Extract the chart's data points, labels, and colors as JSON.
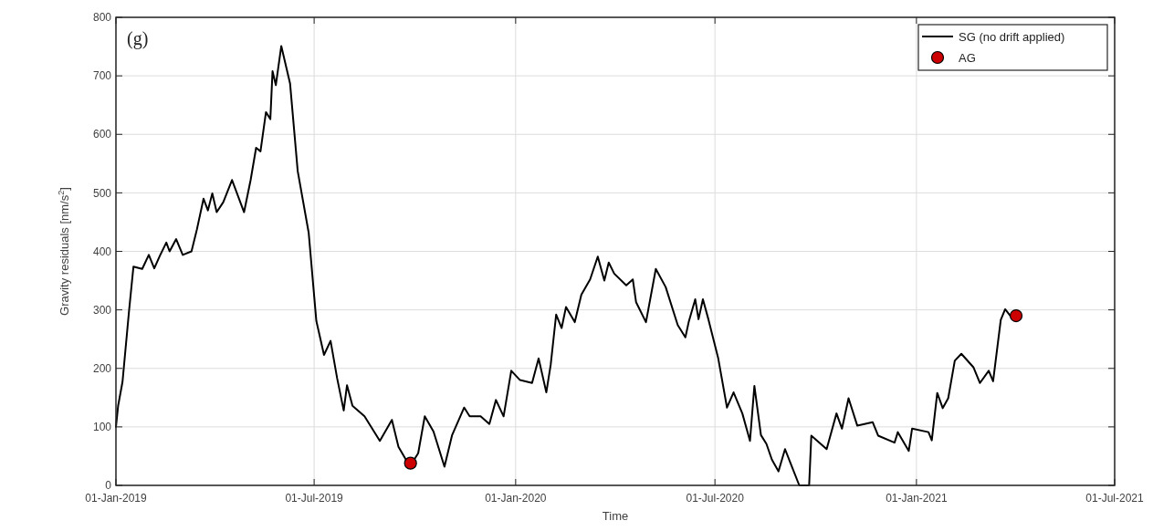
{
  "chart_data": {
    "type": "line",
    "xlabel": "Time",
    "ylabel": "Gravity residuals [nm/s$^{2}$]",
    "annotations": [
      "(g)"
    ],
    "xlim": [
      "2019-01-01",
      "2021-07-01"
    ],
    "xticks": [
      {
        "value": "2019-01-01",
        "label": "01-Jan-2019"
      },
      {
        "value": "2019-07-01",
        "label": "01-Jul-2019"
      },
      {
        "value": "2020-01-01",
        "label": "01-Jan-2020"
      },
      {
        "value": "2020-07-01",
        "label": "01-Jul-2020"
      },
      {
        "value": "2021-01-01",
        "label": "01-Jan-2021"
      },
      {
        "value": "2021-07-01",
        "label": "01-Jul-2021"
      }
    ],
    "ylim": [
      0,
      800
    ],
    "yticks": [
      0,
      100,
      200,
      300,
      400,
      500,
      600,
      700,
      800
    ],
    "grid": true,
    "legend": "top right",
    "series": [
      {
        "name": "SG (no drift applied)",
        "color": "#000000",
        "marker": "none",
        "x": [
          "2019-01-01",
          "2019-01-03",
          "2019-01-07",
          "2019-01-13",
          "2019-01-17",
          "2019-01-25",
          "2019-01-31",
          "2019-02-05",
          "2019-02-10",
          "2019-02-16",
          "2019-02-19",
          "2019-02-25",
          "2019-03-03",
          "2019-03-11",
          "2019-03-16",
          "2019-03-22",
          "2019-03-26",
          "2019-03-30",
          "2019-04-03",
          "2019-04-09",
          "2019-04-17",
          "2019-04-28",
          "2019-05-04",
          "2019-05-09",
          "2019-05-13",
          "2019-05-18",
          "2019-05-22",
          "2019-05-24",
          "2019-05-27",
          "2019-06-01",
          "2019-06-09",
          "2019-06-16",
          "2019-06-26",
          "2019-07-03",
          "2019-07-10",
          "2019-07-16",
          "2019-07-22",
          "2019-07-28",
          "2019-07-31",
          "2019-08-05",
          "2019-08-16",
          "2019-08-30",
          "2019-09-10",
          "2019-09-16",
          "2019-09-24",
          "2019-09-27",
          "2019-10-04",
          "2019-10-10",
          "2019-10-18",
          "2019-10-28",
          "2019-11-04",
          "2019-11-15",
          "2019-11-20",
          "2019-11-30",
          "2019-12-08",
          "2019-12-14",
          "2019-12-21",
          "2019-12-28",
          "2020-01-05",
          "2020-01-16",
          "2020-01-22",
          "2020-01-29",
          "2020-02-02",
          "2020-02-07",
          "2020-02-12",
          "2020-02-16",
          "2020-02-24",
          "2020-03-01",
          "2020-03-09",
          "2020-03-16",
          "2020-03-22",
          "2020-03-26",
          "2020-03-31",
          "2020-04-11",
          "2020-04-17",
          "2020-04-20",
          "2020-04-29",
          "2020-05-08",
          "2020-05-17",
          "2020-05-28",
          "2020-06-04",
          "2020-06-07",
          "2020-06-13",
          "2020-06-16",
          "2020-06-20",
          "2020-06-25",
          "2020-07-04",
          "2020-07-12",
          "2020-07-18",
          "2020-07-26",
          "2020-08-02",
          "2020-08-06",
          "2020-08-12",
          "2020-08-17",
          "2020-08-22",
          "2020-08-28",
          "2020-09-03",
          "2020-09-08",
          "2020-09-16",
          "2020-09-25",
          "2020-09-27",
          "2020-10-11",
          "2020-10-20",
          "2020-10-25",
          "2020-10-31",
          "2020-11-08",
          "2020-11-22",
          "2020-11-27",
          "2020-12-12",
          "2020-12-15",
          "2020-12-25",
          "2020-12-28",
          "2021-01-12",
          "2021-01-15",
          "2021-01-20",
          "2021-01-25",
          "2021-01-30",
          "2021-02-05",
          "2021-02-11",
          "2021-02-22",
          "2021-02-28",
          "2021-03-08",
          "2021-03-12",
          "2021-03-19",
          "2021-03-23",
          "2021-03-28"
        ],
        "values": [
          100,
          136,
          177,
          299,
          374,
          370,
          394,
          371,
          392,
          415,
          400,
          421,
          394,
          400,
          438,
          490,
          470,
          499,
          467,
          484,
          522,
          467,
          522,
          577,
          571,
          638,
          626,
          708,
          684,
          751,
          687,
          537,
          432,
          281,
          223,
          247,
          183,
          128,
          171,
          136,
          118,
          76,
          112,
          66,
          40,
          34,
          55,
          118,
          92,
          32,
          86,
          133,
          118,
          118,
          105,
          146,
          118,
          196,
          180,
          175,
          217,
          159,
          206,
          292,
          269,
          305,
          279,
          326,
          352,
          391,
          350,
          381,
          362,
          342,
          352,
          313,
          279,
          370,
          339,
          274,
          253,
          279,
          318,
          284,
          318,
          284,
          217,
          133,
          159,
          123,
          76,
          170,
          86,
          71,
          44,
          24,
          62,
          38,
          0,
          0,
          85,
          62,
          123,
          97,
          149,
          102,
          108,
          85,
          73,
          91,
          59,
          97,
          91,
          77,
          158,
          132,
          149,
          213,
          225,
          202,
          175,
          196,
          178,
          283,
          301,
          289
        ]
      },
      {
        "name": "AG",
        "type": "scatter",
        "color": "#cc0000",
        "marker": "circle",
        "x": [
          "2019-09-27",
          "2021-04-02"
        ],
        "values": [
          38,
          290
        ]
      }
    ]
  }
}
